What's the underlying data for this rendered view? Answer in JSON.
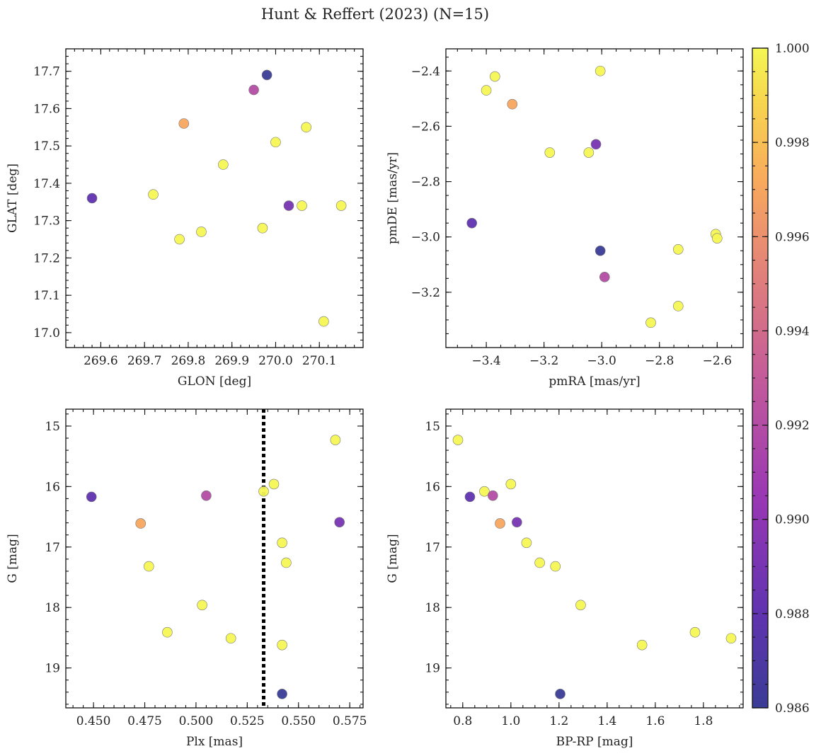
{
  "figure": {
    "title": "Hunt & Reffert (2023) (N=15)"
  },
  "colorbar": {
    "vmin": 0.986,
    "vmax": 1.0,
    "ticks": [
      0.986,
      0.988,
      0.99,
      0.992,
      0.994,
      0.996,
      0.998,
      1.0
    ],
    "tick_labels": [
      "0.986",
      "0.988",
      "0.990",
      "0.992",
      "0.994",
      "0.996",
      "0.998",
      "1.000"
    ],
    "colormap": "plasma"
  },
  "chart_data": [
    {
      "type": "scatter",
      "xlabel": "GLON [deg]",
      "ylabel": "GLAT [deg]",
      "xlim": [
        269.52,
        270.2
      ],
      "ylim": [
        16.96,
        17.76
      ],
      "xticks": [
        269.6,
        269.7,
        269.8,
        269.9,
        270.0,
        270.1
      ],
      "xtick_labels": [
        "269.6",
        "269.7",
        "269.8",
        "269.9",
        "270.0",
        "270.1"
      ],
      "yticks": [
        17.0,
        17.1,
        17.2,
        17.3,
        17.4,
        17.5,
        17.6,
        17.7
      ],
      "ytick_labels": [
        "17.0",
        "17.1",
        "17.2",
        "17.3",
        "17.4",
        "17.5",
        "17.6",
        "17.7"
      ],
      "x_minor": 0.02,
      "y_minor": 0.02,
      "invert_y": false,
      "points": [
        {
          "x": 269.58,
          "y": 17.36,
          "c": 0.988
        },
        {
          "x": 269.72,
          "y": 17.37,
          "c": 1.0
        },
        {
          "x": 269.78,
          "y": 17.25,
          "c": 1.0
        },
        {
          "x": 269.79,
          "y": 17.56,
          "c": 0.997
        },
        {
          "x": 269.83,
          "y": 17.27,
          "c": 1.0
        },
        {
          "x": 269.88,
          "y": 17.45,
          "c": 1.0
        },
        {
          "x": 269.95,
          "y": 17.65,
          "c": 0.992
        },
        {
          "x": 269.97,
          "y": 17.28,
          "c": 1.0
        },
        {
          "x": 269.98,
          "y": 17.69,
          "c": 0.986
        },
        {
          "x": 270.0,
          "y": 17.51,
          "c": 1.0
        },
        {
          "x": 270.03,
          "y": 17.34,
          "c": 0.989
        },
        {
          "x": 270.06,
          "y": 17.34,
          "c": 1.0
        },
        {
          "x": 270.07,
          "y": 17.55,
          "c": 1.0
        },
        {
          "x": 270.11,
          "y": 17.03,
          "c": 1.0
        },
        {
          "x": 270.15,
          "y": 17.34,
          "c": 1.0
        }
      ]
    },
    {
      "type": "scatter",
      "xlabel": "pmRA [mas/yr]",
      "ylabel": "pmDE [mas/yr]",
      "xlim": [
        -3.54,
        -2.51
      ],
      "ylim": [
        -3.4,
        -2.32
      ],
      "xticks": [
        -3.4,
        -3.2,
        -3.0,
        -2.8,
        -2.6
      ],
      "xtick_labels": [
        "−3.4",
        "−3.2",
        "−3.0",
        "−2.8",
        "−2.6"
      ],
      "yticks": [
        -3.2,
        -3.0,
        -2.8,
        -2.6,
        -2.4
      ],
      "ytick_labels": [
        "−3.2",
        "−3.0",
        "−2.8",
        "−2.6",
        "−2.4"
      ],
      "x_minor": 0.05,
      "y_minor": 0.05,
      "invert_y": false,
      "points": [
        {
          "x": -3.45,
          "y": -2.95,
          "c": 0.988
        },
        {
          "x": -3.4,
          "y": -2.47,
          "c": 1.0
        },
        {
          "x": -3.37,
          "y": -2.42,
          "c": 1.0
        },
        {
          "x": -3.31,
          "y": -2.52,
          "c": 0.997
        },
        {
          "x": -3.18,
          "y": -2.695,
          "c": 1.0
        },
        {
          "x": -3.045,
          "y": -2.695,
          "c": 1.0
        },
        {
          "x": -3.02,
          "y": -2.665,
          "c": 0.989
        },
        {
          "x": -3.005,
          "y": -2.4,
          "c": 1.0
        },
        {
          "x": -3.005,
          "y": -3.05,
          "c": 0.986
        },
        {
          "x": -2.99,
          "y": -3.145,
          "c": 0.992
        },
        {
          "x": -2.83,
          "y": -3.31,
          "c": 1.0
        },
        {
          "x": -2.735,
          "y": -3.045,
          "c": 1.0
        },
        {
          "x": -2.735,
          "y": -3.25,
          "c": 1.0
        },
        {
          "x": -2.605,
          "y": -2.99,
          "c": 1.0
        },
        {
          "x": -2.6,
          "y": -3.005,
          "c": 1.0
        }
      ]
    },
    {
      "type": "scatter",
      "xlabel": "Plx [mas]",
      "ylabel": "G [mag]",
      "xlim": [
        0.4365,
        0.5815
      ],
      "ylim": [
        14.72,
        19.66
      ],
      "xticks": [
        0.45,
        0.475,
        0.5,
        0.525,
        0.55,
        0.575
      ],
      "xtick_labels": [
        "0.450",
        "0.475",
        "0.500",
        "0.525",
        "0.550",
        "0.575"
      ],
      "yticks": [
        15,
        16,
        17,
        18,
        19
      ],
      "ytick_labels": [
        "15",
        "16",
        "17",
        "18",
        "19"
      ],
      "x_minor": 0.005,
      "y_minor": 0.2,
      "invert_y": true,
      "vline": 0.533,
      "points": [
        {
          "x": 0.449,
          "y": 16.17,
          "c": 0.988
        },
        {
          "x": 0.473,
          "y": 16.61,
          "c": 0.997
        },
        {
          "x": 0.477,
          "y": 17.32,
          "c": 1.0
        },
        {
          "x": 0.486,
          "y": 18.41,
          "c": 1.0
        },
        {
          "x": 0.503,
          "y": 17.96,
          "c": 1.0
        },
        {
          "x": 0.505,
          "y": 16.15,
          "c": 0.992
        },
        {
          "x": 0.517,
          "y": 18.51,
          "c": 1.0
        },
        {
          "x": 0.533,
          "y": 16.08,
          "c": 1.0
        },
        {
          "x": 0.538,
          "y": 15.96,
          "c": 1.0
        },
        {
          "x": 0.542,
          "y": 16.93,
          "c": 1.0
        },
        {
          "x": 0.542,
          "y": 18.62,
          "c": 1.0
        },
        {
          "x": 0.542,
          "y": 19.43,
          "c": 0.986
        },
        {
          "x": 0.544,
          "y": 17.26,
          "c": 1.0
        },
        {
          "x": 0.568,
          "y": 15.23,
          "c": 1.0
        },
        {
          "x": 0.57,
          "y": 16.59,
          "c": 0.989
        }
      ]
    },
    {
      "type": "scatter",
      "xlabel": "BP-RP [mag]",
      "ylabel": "G [mag]",
      "xlim": [
        0.73,
        1.965
      ],
      "ylim": [
        14.72,
        19.66
      ],
      "xticks": [
        0.8,
        1.0,
        1.2,
        1.4,
        1.6,
        1.8
      ],
      "xtick_labels": [
        "0.8",
        "1.0",
        "1.2",
        "1.4",
        "1.6",
        "1.8"
      ],
      "yticks": [
        15,
        16,
        17,
        18,
        19
      ],
      "ytick_labels": [
        "15",
        "16",
        "17",
        "18",
        "19"
      ],
      "x_minor": 0.05,
      "y_minor": 0.2,
      "invert_y": true,
      "points": [
        {
          "x": 0.78,
          "y": 15.23,
          "c": 1.0
        },
        {
          "x": 0.83,
          "y": 16.17,
          "c": 0.988
        },
        {
          "x": 0.89,
          "y": 16.08,
          "c": 1.0
        },
        {
          "x": 0.925,
          "y": 16.15,
          "c": 0.992
        },
        {
          "x": 0.955,
          "y": 16.61,
          "c": 0.997
        },
        {
          "x": 1.0,
          "y": 15.96,
          "c": 1.0
        },
        {
          "x": 1.025,
          "y": 16.59,
          "c": 0.989
        },
        {
          "x": 1.065,
          "y": 16.93,
          "c": 1.0
        },
        {
          "x": 1.12,
          "y": 17.26,
          "c": 1.0
        },
        {
          "x": 1.185,
          "y": 17.32,
          "c": 1.0
        },
        {
          "x": 1.205,
          "y": 19.43,
          "c": 0.986
        },
        {
          "x": 1.29,
          "y": 17.96,
          "c": 1.0
        },
        {
          "x": 1.545,
          "y": 18.62,
          "c": 1.0
        },
        {
          "x": 1.765,
          "y": 18.41,
          "c": 1.0
        },
        {
          "x": 1.915,
          "y": 18.51,
          "c": 1.0
        }
      ]
    }
  ]
}
